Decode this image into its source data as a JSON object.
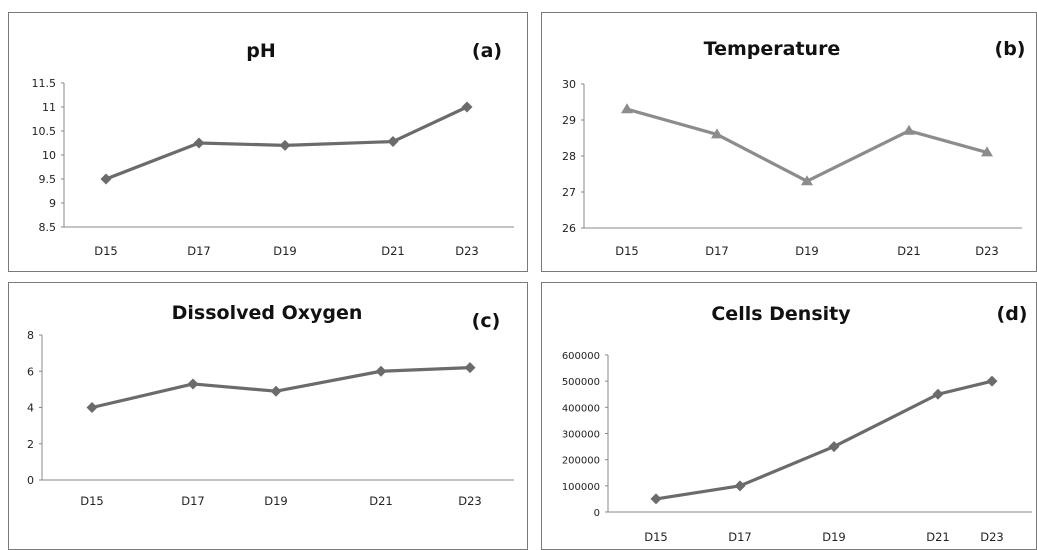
{
  "chart_data": [
    {
      "type": "line",
      "title": "pH",
      "panel_label": "(a)",
      "categories": [
        "D15",
        "D17",
        "D19",
        "D21",
        "D23"
      ],
      "values": [
        9.5,
        10.25,
        10.2,
        10.28,
        11.0
      ],
      "ylim": [
        8.5,
        11.5
      ],
      "yticks": [
        "8.5",
        "9",
        "9.5",
        "10",
        "10.5",
        "11",
        "11.5"
      ],
      "marker": "diamond",
      "color": "#6b6b6b",
      "grid": false
    },
    {
      "type": "line",
      "title": "Temperature",
      "panel_label": "(b)",
      "categories": [
        "D15",
        "D17",
        "D19",
        "D21",
        "D23"
      ],
      "values": [
        29.3,
        28.6,
        27.3,
        28.7,
        28.1
      ],
      "ylim": [
        26,
        30
      ],
      "yticks": [
        "26",
        "27",
        "28",
        "29",
        "30"
      ],
      "marker": "triangle",
      "color": "#8c8c8c",
      "grid": false
    },
    {
      "type": "line",
      "title": "Dissolved Oxygen",
      "panel_label": "(c)",
      "categories": [
        "D15",
        "D17",
        "D19",
        "D21",
        "D23"
      ],
      "values": [
        4.0,
        5.3,
        4.9,
        6.0,
        6.2
      ],
      "ylim": [
        0,
        8
      ],
      "yticks": [
        "0",
        "2",
        "4",
        "6",
        "8"
      ],
      "marker": "diamond",
      "color": "#6b6b6b",
      "grid": false
    },
    {
      "type": "line",
      "title": "Cells Density",
      "panel_label": "(d)",
      "categories": [
        "D15",
        "D17",
        "D19",
        "D21",
        "D23"
      ],
      "values": [
        50000,
        100000,
        250000,
        450000,
        500000
      ],
      "ylim": [
        0,
        600000
      ],
      "yticks": [
        "0",
        "100000",
        "200000",
        "300000",
        "400000",
        "500000",
        "600000"
      ],
      "marker": "diamond",
      "color": "#6b6b6b",
      "grid": false
    }
  ]
}
